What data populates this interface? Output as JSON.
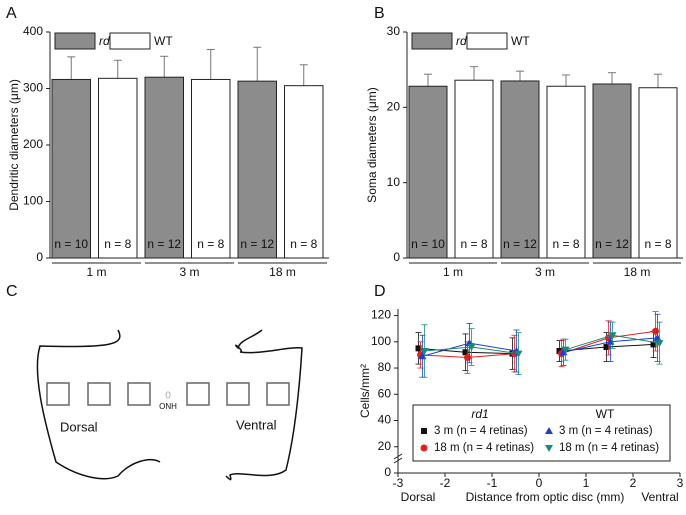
{
  "panels": [
    "A",
    "B",
    "C",
    "D"
  ],
  "diagram": {
    "dorsal": "Dorsal",
    "ventral": "Ventral",
    "center": "0",
    "onh": "ONH"
  },
  "chart_data": [
    {
      "type": "bar",
      "y_label": "Dendritic diameters (μm)",
      "categories": [
        "1 m",
        "3 m",
        "18 m"
      ],
      "series": [
        {
          "name": "rd1",
          "color": "#8c8c8c",
          "values": [
            316,
            320,
            313
          ],
          "errors": [
            40,
            37,
            60
          ],
          "annotations": [
            "n = 10",
            "n = 12",
            "n = 12"
          ]
        },
        {
          "name": "WT",
          "color": "#ffffff",
          "values": [
            318,
            316,
            305
          ],
          "errors": [
            32,
            53,
            37
          ],
          "annotations": [
            "n = 8",
            "n = 8",
            "n = 8"
          ]
        }
      ],
      "ylim": [
        0,
        400
      ],
      "yticks": [
        0,
        100,
        200,
        300,
        400
      ]
    },
    {
      "type": "bar",
      "y_label": "Soma diameters (μm)",
      "categories": [
        "1 m",
        "3 m",
        "18 m"
      ],
      "series": [
        {
          "name": "rd1",
          "color": "#8c8c8c",
          "values": [
            22.8,
            23.5,
            23.1
          ],
          "errors": [
            1.6,
            1.3,
            1.5
          ],
          "annotations": [
            "n = 10",
            "n = 12",
            "n = 12"
          ]
        },
        {
          "name": "WT",
          "color": "#ffffff",
          "values": [
            23.6,
            22.8,
            22.6
          ],
          "errors": [
            1.8,
            1.5,
            1.8
          ],
          "annotations": [
            "n = 8",
            "n = 8",
            "n = 8"
          ]
        }
      ],
      "ylim": [
        0,
        30
      ],
      "yticks": [
        0,
        10,
        20,
        30
      ]
    },
    {
      "type": "line",
      "y_label": "Cells/mm²",
      "x_label": "Distance from optic disc (mm)",
      "x_end_labels": [
        "Dorsal",
        "Ventral"
      ],
      "legend_titles": [
        "rd1",
        "WT"
      ],
      "x": [
        -2.5,
        -1.5,
        -0.5,
        0,
        0.5,
        1.5,
        2.5
      ],
      "series": [
        {
          "name": "3 m (n = 4 retinas)",
          "color": "#111111",
          "marker": "square",
          "values": [
            95,
            92,
            91,
            null,
            93,
            96,
            98
          ],
          "errors": [
            12,
            14,
            12,
            null,
            8,
            11,
            10
          ]
        },
        {
          "name": "18 m (n = 4 retinas)",
          "color": "#e02020",
          "marker": "circle",
          "values": [
            90,
            88,
            91,
            null,
            91,
            103,
            108
          ],
          "errors": [
            10,
            12,
            14,
            null,
            10,
            13,
            15
          ]
        },
        {
          "name": "3 m (n = 4 retinas)",
          "color": "#1f3fd0",
          "marker": "triangle-up",
          "values": [
            89,
            99,
            93,
            null,
            92,
            100,
            103
          ],
          "errors": [
            16,
            15,
            16,
            null,
            10,
            15,
            18
          ]
        },
        {
          "name": "18 m (n = 4 retinas)",
          "color": "#1a8a7a",
          "marker": "triangle-down",
          "values": [
            93,
            96,
            91,
            null,
            94,
            105,
            99
          ],
          "errors": [
            20,
            14,
            16,
            null,
            8,
            10,
            16
          ]
        }
      ],
      "xlim": [
        -3,
        3
      ],
      "xticks": [
        -3,
        -2,
        -1,
        0,
        1,
        2,
        3
      ],
      "ylim": [
        0,
        125
      ],
      "yticks": [
        0,
        20,
        40,
        60,
        80,
        100,
        120
      ]
    }
  ]
}
